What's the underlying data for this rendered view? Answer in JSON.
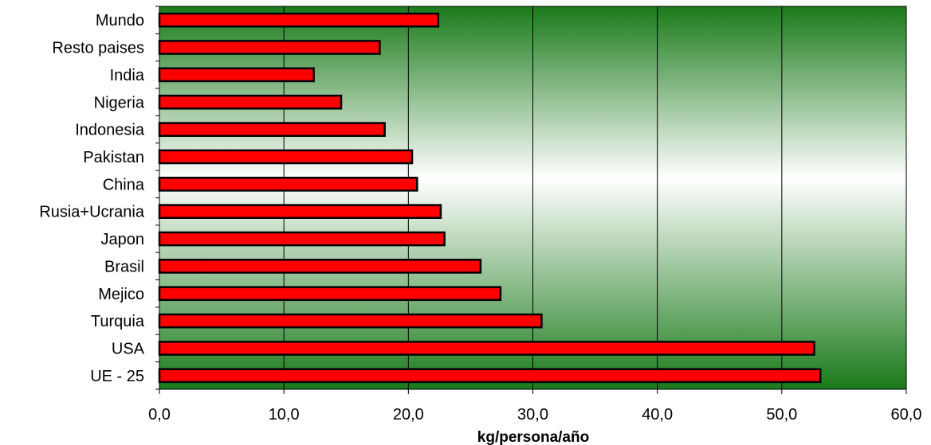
{
  "chart_data": {
    "type": "bar",
    "orientation": "horizontal",
    "title": "",
    "xlabel": "kg/persona/año",
    "ylabel": "",
    "categories": [
      "Mundo",
      "Resto paises",
      "India",
      "Nigeria",
      "Indonesia",
      "Pakistan",
      "China",
      "Rusia+Ucrania",
      "Japon",
      "Brasil",
      "Mejico",
      "Turquia",
      "USA",
      "UE - 25"
    ],
    "values": [
      22.4,
      17.7,
      12.4,
      14.6,
      18.1,
      20.3,
      20.7,
      22.6,
      22.9,
      25.8,
      27.4,
      30.7,
      52.6,
      53.1
    ],
    "xlim": [
      0,
      60
    ],
    "xticks": [
      "0,0",
      "10,0",
      "20,0",
      "30,0",
      "40,0",
      "50,0",
      "60,0"
    ],
    "grid": "vertical",
    "bar_color": "#ff0000",
    "bar_border_color": "#000000",
    "background_gradient": [
      "#1a7a1a",
      "#ffffff",
      "#1a7a1a"
    ]
  }
}
